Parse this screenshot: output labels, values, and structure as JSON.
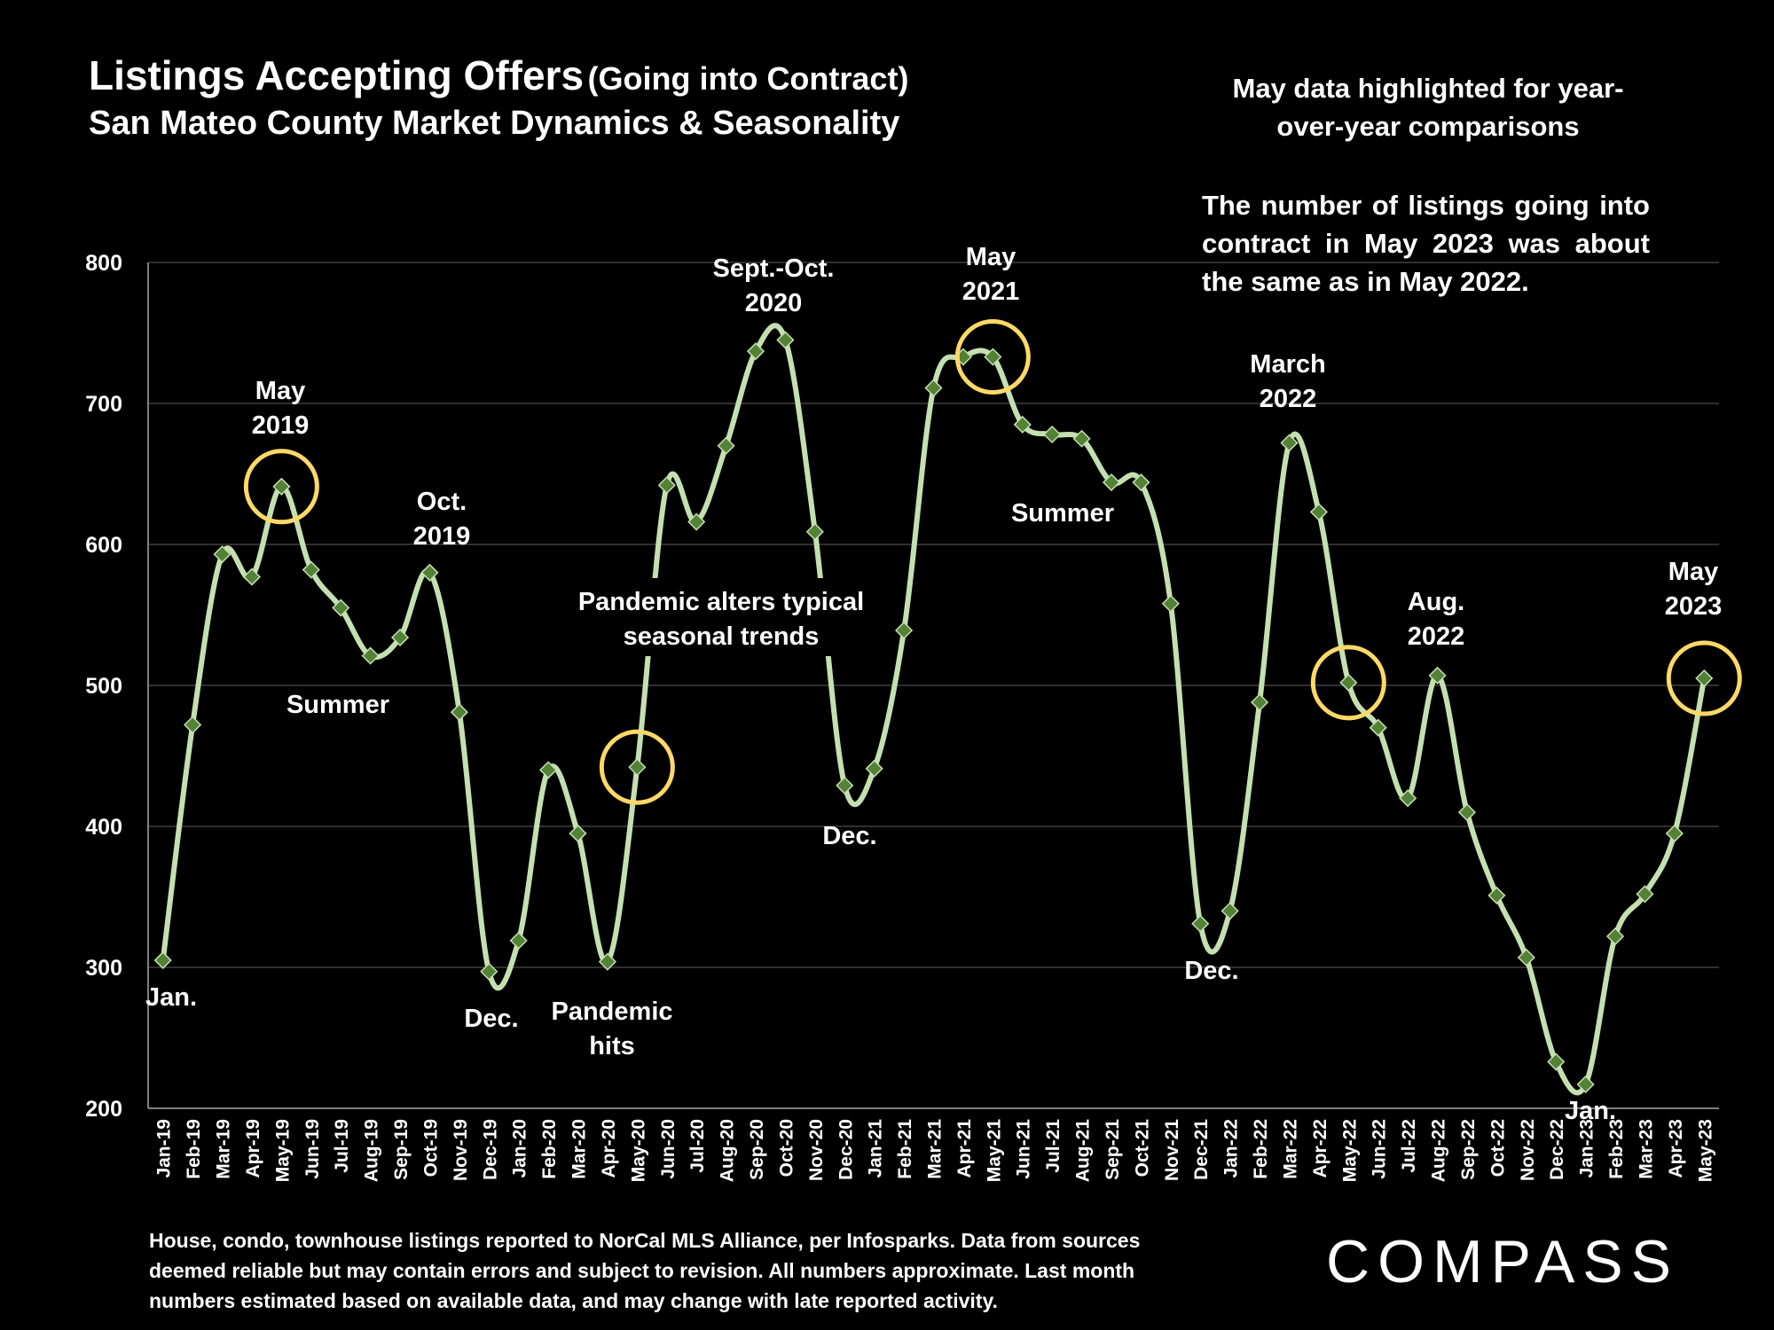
{
  "header": {
    "title": "Listings Accepting Offers",
    "title_paren": "(Going into Contract)",
    "subtitle": "San Mateo County Market Dynamics & Seasonality"
  },
  "notes": {
    "highlight": "May data highlighted for year-over-year comparisons",
    "summary": "The number of listings going into contract in May 2023 was about the same as in May 2022."
  },
  "footnote": "House, condo, townhouse listings reported to NorCal MLS Alliance, per Infosparks. Data from sources deemed reliable but may contain errors and subject to revision. All numbers approximate. Last month numbers estimated based on available data, and may change with late reported activity.",
  "logo": "COMPASS",
  "colors": {
    "line": "#c5e0b0",
    "marker": "#538135",
    "highlight": "#ffd966",
    "grid": "#404040"
  },
  "chart_data": {
    "type": "line",
    "ylim": [
      200,
      800
    ],
    "yticks": [
      200,
      300,
      400,
      500,
      600,
      700,
      800
    ],
    "grid": true,
    "categories": [
      "Jan-19",
      "Feb-19",
      "Mar-19",
      "Apr-19",
      "May-19",
      "Jun-19",
      "Jul-19",
      "Aug-19",
      "Sep-19",
      "Oct-19",
      "Nov-19",
      "Dec-19",
      "Jan-20",
      "Feb-20",
      "Mar-20",
      "Apr-20",
      "May-20",
      "Jun-20",
      "Jul-20",
      "Aug-20",
      "Sep-20",
      "Oct-20",
      "Nov-20",
      "Dec-20",
      "Jan-21",
      "Feb-21",
      "Mar-21",
      "Apr-21",
      "May-21",
      "Jun-21",
      "Jul-21",
      "Aug-21",
      "Sep-21",
      "Oct-21",
      "Nov-21",
      "Dec-21",
      "Jan-22",
      "Feb-22",
      "Mar-22",
      "Apr-22",
      "May-22",
      "Jun-22",
      "Jul-22",
      "Aug-22",
      "Sep-22",
      "Oct-22",
      "Nov-22",
      "Dec-22",
      "Jan-23",
      "Feb-23",
      "Mar-23",
      "Apr-23",
      "May-23"
    ],
    "values": [
      305,
      472,
      593,
      577,
      641,
      582,
      555,
      521,
      534,
      580,
      481,
      297,
      319,
      440,
      395,
      304,
      442,
      642,
      616,
      670,
      737,
      745,
      609,
      429,
      441,
      539,
      711,
      733,
      733,
      685,
      678,
      675,
      644,
      644,
      558,
      331,
      340,
      488,
      672,
      623,
      502,
      470,
      420,
      507,
      410,
      351,
      307,
      233,
      217,
      322,
      352,
      395,
      505
    ],
    "highlighted": [
      "May-19",
      "May-20",
      "May-21",
      "May-22",
      "May-23"
    ],
    "annotations": [
      {
        "lines": [
          "May",
          "2019"
        ]
      },
      {
        "lines": [
          "Oct.",
          "2019"
        ]
      },
      {
        "lines": [
          "Summer"
        ]
      },
      {
        "lines": [
          "Jan."
        ]
      },
      {
        "lines": [
          "Dec."
        ]
      },
      {
        "lines": [
          "Pandemic",
          "hits"
        ]
      },
      {
        "lines": [
          "Pandemic alters typical",
          "seasonal trends"
        ]
      },
      {
        "lines": [
          "Sept.-Oct.",
          "2020"
        ]
      },
      {
        "lines": [
          "Dec."
        ]
      },
      {
        "lines": [
          "May",
          "2021"
        ]
      },
      {
        "lines": [
          "Summer"
        ]
      },
      {
        "lines": [
          "March",
          "2022"
        ]
      },
      {
        "lines": [
          "Dec."
        ]
      },
      {
        "lines": [
          "Aug.",
          "2022"
        ]
      },
      {
        "lines": [
          "Jan."
        ]
      },
      {
        "lines": [
          "May",
          "2023"
        ]
      }
    ]
  }
}
